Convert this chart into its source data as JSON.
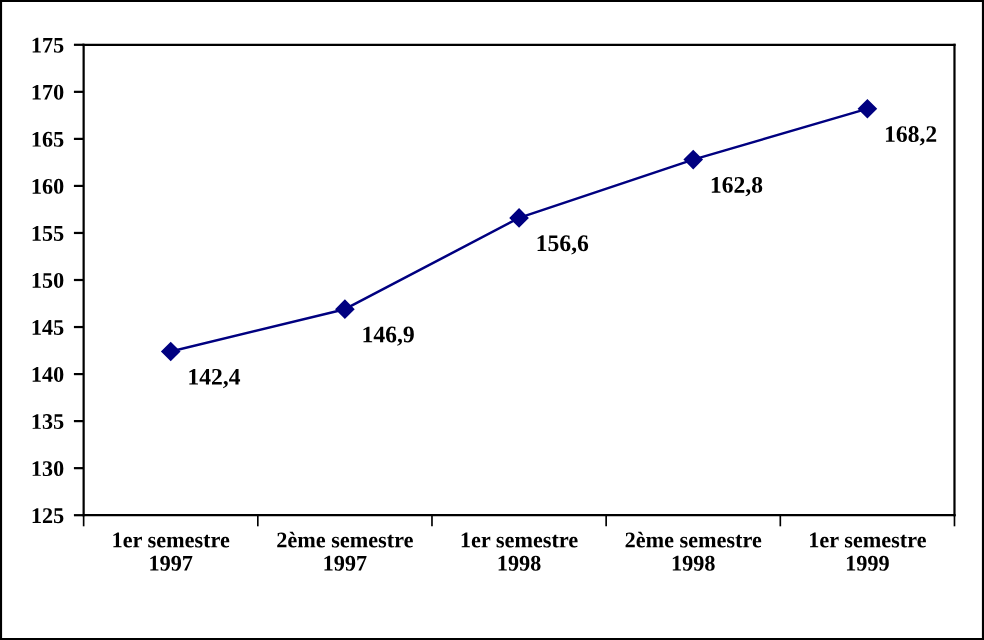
{
  "chart_data": {
    "type": "line",
    "categories": [
      "1er semestre\n1997",
      "2ème semestre\n1997",
      "1er semestre\n1998",
      "2ème semestre\n1998",
      "1er semestre\n1999"
    ],
    "series": [
      {
        "color": "#000080",
        "values": [
          142.4,
          146.9,
          156.6,
          162.8,
          168.2
        ],
        "value_labels": [
          "142,4",
          "146,9",
          "156,6",
          "162,8",
          "168,2"
        ]
      }
    ],
    "ylim": [
      125,
      175
    ],
    "yticks": [
      125,
      130,
      135,
      140,
      145,
      150,
      155,
      160,
      165,
      170,
      175
    ],
    "marker": "diamond",
    "line_style": "solid",
    "grid": false,
    "legend": false
  }
}
